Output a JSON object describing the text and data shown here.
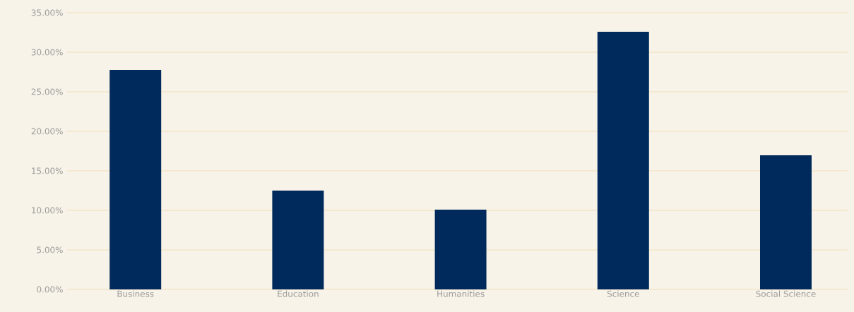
{
  "chart_data": {
    "type": "bar",
    "categories": [
      "Business",
      "Education",
      "Humanities",
      "Science",
      "Social Science"
    ],
    "values": [
      27.77,
      12.5,
      10.09,
      32.59,
      16.96
    ],
    "color": "#002a5c",
    "ylim": [
      0,
      35
    ],
    "yticks": [
      {
        "value": 0,
        "label": "0.00%"
      },
      {
        "value": 5,
        "label": "5.00%"
      },
      {
        "value": 10,
        "label": "10.00%"
      },
      {
        "value": 15,
        "label": "15.00%"
      },
      {
        "value": 20,
        "label": "20.00%"
      },
      {
        "value": 25,
        "label": "25.00%"
      },
      {
        "value": 30,
        "label": "30.00%"
      },
      {
        "value": 35,
        "label": "35.00%"
      }
    ],
    "grid": "y"
  }
}
